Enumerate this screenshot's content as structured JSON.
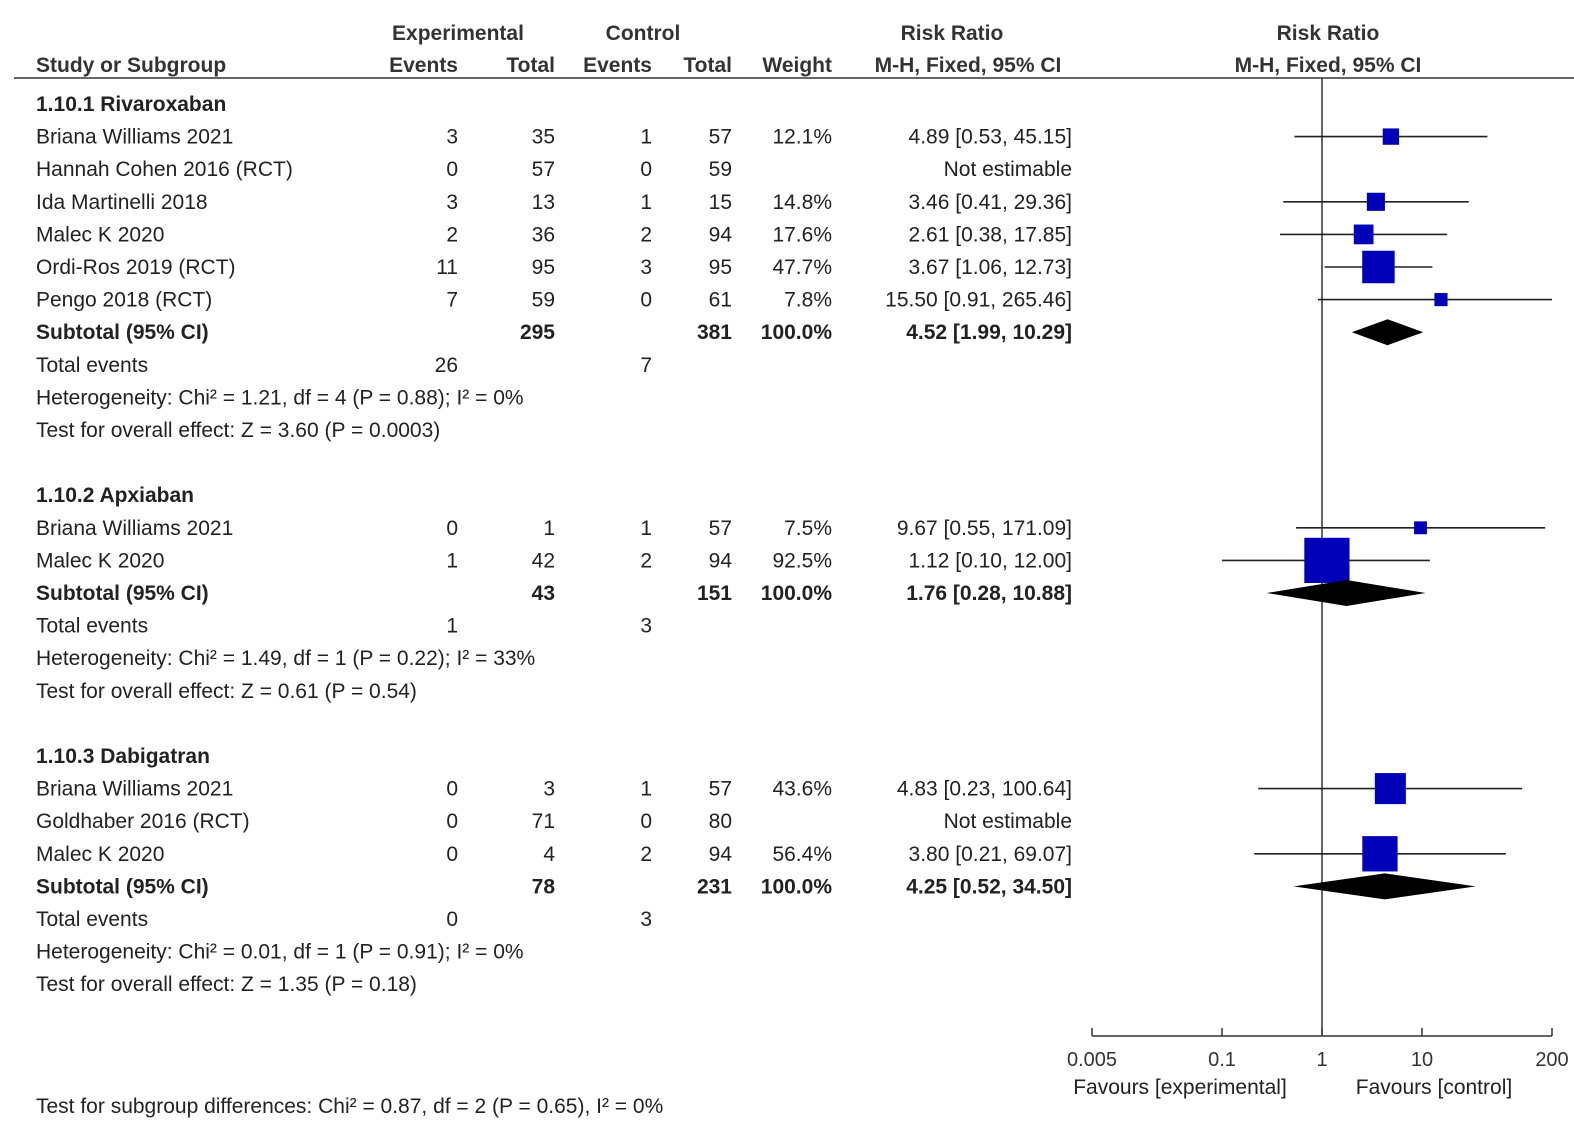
{
  "header": {
    "experimental": "Experimental",
    "control": "Control",
    "risk_ratio": "Risk Ratio",
    "risk_ratio_plot": "Risk Ratio",
    "study_col": "Study or Subgroup",
    "events": "Events",
    "total": "Total",
    "events2": "Events",
    "total2": "Total",
    "weight": "Weight",
    "method": "M-H, Fixed, 95% CI",
    "method_plot": "M-H, Fixed, 95% CI"
  },
  "footer": {
    "favours_left": "Favours [experimental]",
    "favours_right": "Favours [control]",
    "subgroup_test": "Test for subgroup differences: Chi² = 0.87, df = 2 (P = 0.65), I² = 0%"
  },
  "rows": [
    {
      "study": "1.10.1 Rivaroxaban",
      "kind": "group"
    },
    {
      "study": "Briana Williams 2021",
      "e_ev": "3",
      "e_tot": "35",
      "c_ev": "1",
      "c_tot": "57",
      "weight": "12.1%",
      "ci": "4.89 [0.53, 45.15]",
      "kind": "study"
    },
    {
      "study": "Hannah Cohen 2016 (RCT)",
      "e_ev": "0",
      "e_tot": "57",
      "c_ev": "0",
      "c_tot": "59",
      "weight": "",
      "ci": "Not estimable",
      "kind": "study"
    },
    {
      "study": "Ida Martinelli 2018",
      "e_ev": "3",
      "e_tot": "13",
      "c_ev": "1",
      "c_tot": "15",
      "weight": "14.8%",
      "ci": "3.46 [0.41, 29.36]",
      "kind": "study"
    },
    {
      "study": "Malec K 2020",
      "e_ev": "2",
      "e_tot": "36",
      "c_ev": "2",
      "c_tot": "94",
      "weight": "17.6%",
      "ci": "2.61 [0.38, 17.85]",
      "kind": "study"
    },
    {
      "study": "Ordi-Ros 2019 (RCT)",
      "e_ev": "11",
      "e_tot": "95",
      "c_ev": "3",
      "c_tot": "95",
      "weight": "47.7%",
      "ci": "3.67 [1.06, 12.73]",
      "kind": "study"
    },
    {
      "study": "Pengo 2018 (RCT)",
      "e_ev": "7",
      "e_tot": "59",
      "c_ev": "0",
      "c_tot": "61",
      "weight": "7.8%",
      "ci": "15.50 [0.91, 265.46]",
      "kind": "study"
    },
    {
      "study": "Subtotal (95% CI)",
      "e_tot": "295",
      "c_tot": "381",
      "weight": "100.0%",
      "ci": "4.52 [1.99, 10.29]",
      "kind": "subtotal"
    },
    {
      "study": "Total events",
      "e_ev": "26",
      "c_ev": "7",
      "kind": "events"
    },
    {
      "study": "Heterogeneity: Chi² = 1.21, df = 4 (P = 0.88); I² = 0%",
      "kind": "note"
    },
    {
      "study": "Test for overall effect: Z = 3.60 (P = 0.0003)",
      "kind": "note"
    },
    {
      "study": "",
      "kind": "blank"
    },
    {
      "study": "1.10.2 Apxiaban",
      "kind": "group"
    },
    {
      "study": "Briana Williams 2021",
      "e_ev": "0",
      "e_tot": "1",
      "c_ev": "1",
      "c_tot": "57",
      "weight": "7.5%",
      "ci": "9.67 [0.55, 171.09]",
      "kind": "study"
    },
    {
      "study": "Malec K 2020",
      "e_ev": "1",
      "e_tot": "42",
      "c_ev": "2",
      "c_tot": "94",
      "weight": "92.5%",
      "ci": "1.12 [0.10, 12.00]",
      "kind": "study"
    },
    {
      "study": "Subtotal (95% CI)",
      "e_tot": "43",
      "c_tot": "151",
      "weight": "100.0%",
      "ci": "1.76 [0.28, 10.88]",
      "kind": "subtotal"
    },
    {
      "study": "Total events",
      "e_ev": "1",
      "c_ev": "3",
      "kind": "events"
    },
    {
      "study": "Heterogeneity: Chi² = 1.49, df = 1 (P = 0.22); I² = 33%",
      "kind": "note"
    },
    {
      "study": "Test for overall effect: Z = 0.61 (P = 0.54)",
      "kind": "note"
    },
    {
      "study": "",
      "kind": "blank"
    },
    {
      "study": "1.10.3 Dabigatran",
      "kind": "group"
    },
    {
      "study": "Briana Williams 2021",
      "e_ev": "0",
      "e_tot": "3",
      "c_ev": "1",
      "c_tot": "57",
      "weight": "43.6%",
      "ci": "4.83 [0.23, 100.64]",
      "kind": "study"
    },
    {
      "study": "Goldhaber 2016 (RCT)",
      "e_ev": "0",
      "e_tot": "71",
      "c_ev": "0",
      "c_tot": "80",
      "weight": "",
      "ci": "Not estimable",
      "kind": "study"
    },
    {
      "study": "Malec K 2020",
      "e_ev": "0",
      "e_tot": "4",
      "c_ev": "2",
      "c_tot": "94",
      "weight": "56.4%",
      "ci": "3.80 [0.21, 69.07]",
      "kind": "study"
    },
    {
      "study": "Subtotal (95% CI)",
      "e_tot": "78",
      "c_tot": "231",
      "weight": "100.0%",
      "ci": "4.25 [0.52, 34.50]",
      "kind": "subtotal"
    },
    {
      "study": "Total events",
      "e_ev": "0",
      "c_ev": "3",
      "kind": "events"
    },
    {
      "study": "Heterogeneity: Chi² = 0.01, df = 1 (P = 0.91); I² = 0%",
      "kind": "note"
    },
    {
      "study": "Test for overall effect: Z = 1.35 (P = 0.18)",
      "kind": "note"
    }
  ],
  "chart_data": {
    "type": "forest",
    "title": "",
    "xlabel": "",
    "ylabel": "",
    "x_scale": "log",
    "xlim": [
      0.005,
      200
    ],
    "x_ticks": [
      "0.005",
      "0.1",
      "1",
      "10",
      "200"
    ],
    "x_tick_values": [
      0.005,
      0.1,
      1,
      10,
      200
    ],
    "reference_line": 1,
    "marker_color": "#0000b8",
    "diamond_color": "#000000",
    "studies": [
      {
        "row": 1,
        "rr": 4.89,
        "lo": 0.53,
        "hi": 45.15,
        "weight": 12.1
      },
      {
        "row": 3,
        "rr": 3.46,
        "lo": 0.41,
        "hi": 29.36,
        "weight": 14.8
      },
      {
        "row": 4,
        "rr": 2.61,
        "lo": 0.38,
        "hi": 17.85,
        "weight": 17.6
      },
      {
        "row": 5,
        "rr": 3.67,
        "lo": 1.06,
        "hi": 12.73,
        "weight": 47.7
      },
      {
        "row": 6,
        "rr": 15.5,
        "lo": 0.91,
        "hi": 265.46,
        "weight": 7.8
      },
      {
        "row": 13,
        "rr": 9.67,
        "lo": 0.55,
        "hi": 171.09,
        "weight": 7.5
      },
      {
        "row": 14,
        "rr": 1.12,
        "lo": 0.1,
        "hi": 12.0,
        "weight": 92.5
      },
      {
        "row": 21,
        "rr": 4.83,
        "lo": 0.23,
        "hi": 100.64,
        "weight": 43.6
      },
      {
        "row": 23,
        "rr": 3.8,
        "lo": 0.21,
        "hi": 69.07,
        "weight": 56.4
      }
    ],
    "subtotals": [
      {
        "row": 7,
        "rr": 4.52,
        "lo": 1.99,
        "hi": 10.29
      },
      {
        "row": 15,
        "rr": 1.76,
        "lo": 0.28,
        "hi": 10.88
      },
      {
        "row": 24,
        "rr": 4.25,
        "lo": 0.52,
        "hi": 34.5
      }
    ]
  }
}
